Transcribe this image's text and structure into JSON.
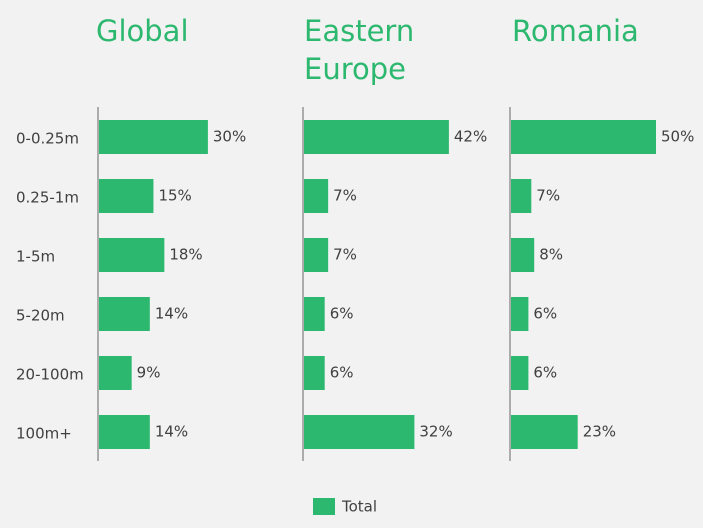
{
  "chart_data": [
    {
      "type": "bar",
      "title": "Global",
      "categories": [
        "0-0.25m",
        "0.25-1m",
        "1-5m",
        "5-20m",
        "20-100m",
        "100m+"
      ],
      "values": [
        30,
        15,
        18,
        14,
        9,
        14
      ],
      "value_labels": [
        "30%",
        "15%",
        "18%",
        "14%",
        "9%",
        "14%"
      ],
      "color": "#2db870"
    },
    {
      "type": "bar",
      "title": "Eastern Europe",
      "values": [
        42,
        7,
        7,
        6,
        6,
        32
      ],
      "value_labels": [
        "42%",
        "7%",
        "7%",
        "6%",
        "6%",
        "32%"
      ],
      "color": "#2db870"
    },
    {
      "type": "bar",
      "title": "Romania",
      "values": [
        50,
        7,
        8,
        6,
        6,
        23
      ],
      "value_labels": [
        "50%",
        "7%",
        "8%",
        "6%",
        "6%",
        "23%"
      ],
      "color": "#2db870"
    }
  ],
  "legend": {
    "name": "Total",
    "color": "#2db870"
  }
}
